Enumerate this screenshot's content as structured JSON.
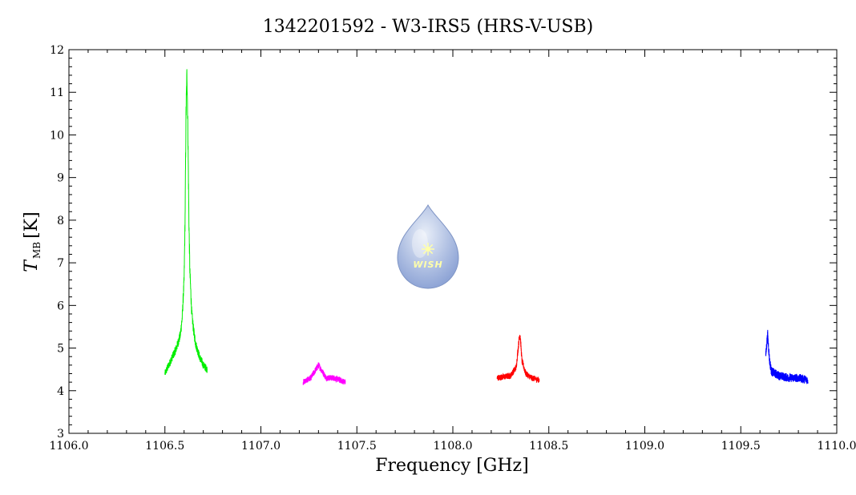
{
  "chart_data": {
    "type": "line",
    "title": "1342201592 - W3-IRS5 (HRS-V-USB)",
    "xlabel": "Frequency [GHz]",
    "ylabel": {
      "main": "T",
      "sub": "MB",
      "unit": "[K]"
    },
    "xlim": [
      1106.0,
      1110.0
    ],
    "ylim": [
      3,
      12
    ],
    "x_ticks": [
      1106.0,
      1106.5,
      1107.0,
      1107.5,
      1108.0,
      1108.5,
      1109.0,
      1109.5,
      1110.0
    ],
    "x_tick_labels": [
      "1106.0",
      "1106.5",
      "1107.0",
      "1107.5",
      "1108.0",
      "1108.5",
      "1109.0",
      "1109.5",
      "1110.0"
    ],
    "y_ticks": [
      3,
      4,
      5,
      6,
      7,
      8,
      9,
      10,
      11,
      12
    ],
    "y_tick_labels": [
      "3",
      "4",
      "5",
      "6",
      "7",
      "8",
      "9",
      "10",
      "11",
      "12"
    ],
    "grid": false,
    "logo": {
      "text": "WISH",
      "colors": {
        "drop_top": "#e8eef8",
        "drop_bottom": "#8fa5d6",
        "star": "#ffffaa"
      }
    },
    "series": [
      {
        "color": "#00ee00",
        "x_start": 1106.5,
        "x_end": 1106.72,
        "noise": 0.08,
        "profile": [
          [
            1106.5,
            4.4
          ],
          [
            1106.52,
            4.6
          ],
          [
            1106.54,
            4.8
          ],
          [
            1106.56,
            5.0
          ],
          [
            1106.58,
            5.3
          ],
          [
            1106.59,
            5.7
          ],
          [
            1106.6,
            6.6
          ],
          [
            1106.605,
            8.0
          ],
          [
            1106.61,
            10.5
          ],
          [
            1106.615,
            11.5
          ],
          [
            1106.62,
            10.0
          ],
          [
            1106.625,
            8.0
          ],
          [
            1106.63,
            6.8
          ],
          [
            1106.64,
            5.8
          ],
          [
            1106.65,
            5.4
          ],
          [
            1106.66,
            5.1
          ],
          [
            1106.68,
            4.8
          ],
          [
            1106.7,
            4.6
          ],
          [
            1106.72,
            4.5
          ]
        ]
      },
      {
        "color": "#ff00ff",
        "x_start": 1107.22,
        "x_end": 1107.44,
        "noise": 0.07,
        "profile": [
          [
            1107.22,
            4.2
          ],
          [
            1107.26,
            4.3
          ],
          [
            1107.28,
            4.45
          ],
          [
            1107.3,
            4.6
          ],
          [
            1107.32,
            4.45
          ],
          [
            1107.34,
            4.3
          ],
          [
            1107.38,
            4.3
          ],
          [
            1107.41,
            4.25
          ],
          [
            1107.44,
            4.2
          ]
        ]
      },
      {
        "color": "#ff0000",
        "x_start": 1108.23,
        "x_end": 1108.45,
        "noise": 0.07,
        "profile": [
          [
            1108.23,
            4.3
          ],
          [
            1108.3,
            4.35
          ],
          [
            1108.33,
            4.55
          ],
          [
            1108.345,
            5.2
          ],
          [
            1108.35,
            5.35
          ],
          [
            1108.36,
            4.7
          ],
          [
            1108.38,
            4.4
          ],
          [
            1108.41,
            4.3
          ],
          [
            1108.45,
            4.25
          ]
        ]
      },
      {
        "color": "#0000ff",
        "x_start": 1109.63,
        "x_end": 1109.85,
        "noise": 0.1,
        "profile": [
          [
            1109.63,
            4.8
          ],
          [
            1109.635,
            5.1
          ],
          [
            1109.64,
            5.3
          ],
          [
            1109.645,
            5.0
          ],
          [
            1109.65,
            4.7
          ],
          [
            1109.66,
            4.45
          ],
          [
            1109.7,
            4.35
          ],
          [
            1109.75,
            4.3
          ],
          [
            1109.8,
            4.3
          ],
          [
            1109.85,
            4.25
          ]
        ]
      }
    ]
  }
}
